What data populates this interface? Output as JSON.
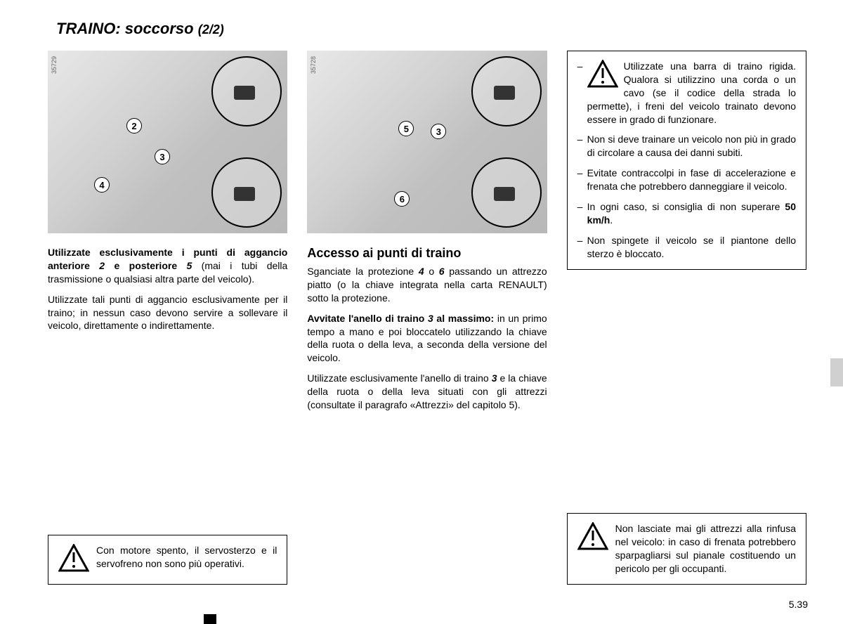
{
  "title_main": "TRAINO: soccorso",
  "title_sub": "(2/2)",
  "figure1": {
    "code": "35729",
    "labels": {
      "n2": "2",
      "n3": "3",
      "n4": "4"
    }
  },
  "figure2": {
    "code": "35728",
    "labels": {
      "n5": "5",
      "n3": "3",
      "n6": "6"
    }
  },
  "col1": {
    "p1_bold": "Utilizzate esclusivamente i punti di aggancio anteriore ",
    "p1_b_num1": "2",
    "p1_mid": " e posteriore ",
    "p1_b_num2": "5",
    "p1_rest": " (mai i tubi della trasmissione o qualsiasi altra parte del veicolo).",
    "p2": "Utilizzate tali punti di aggancio esclusivamente per il traino; in nessun caso devono servire a sollevare il veicolo, direttamente o indirettamente.",
    "warn": "Con motore spento, il servosterzo e il servofreno non sono più operativi."
  },
  "col2": {
    "heading": "Accesso ai punti di traino",
    "p1a": "Sganciate la protezione ",
    "p1n4": "4",
    "p1o": " o ",
    "p1n6": "6",
    "p1b": " passando un attrezzo piatto (o la chiave integrata nella carta RENAULT) sotto la protezione.",
    "p2_bold": "Avvitate l'anello di traino ",
    "p2_num": "3",
    "p2_bold2": " al massimo:",
    "p2_rest": " in un primo tempo a mano e poi bloccatelo utilizzando la chiave della ruota o della leva, a seconda della versione del veicolo.",
    "p3a": "Utilizzate esclusivamente l'anello di traino ",
    "p3n": "3",
    "p3b": " e la chiave della ruota o della leva situati con gli attrezzi (consultate il paragrafo «Attrezzi» del capitolo 5)."
  },
  "col3": {
    "warn1_first": "Utilizzate una barra di traino rigida. Qualora si utilizzino una corda o un cavo (se il codice della strada lo permette), i freni del veicolo trainato devono essere in grado di funzionare.",
    "warn1_items": [
      "Non si deve trainare un veicolo non più in grado di circolare a causa dei danni subiti.",
      "Evitate contraccolpi in fase di accelerazione e frenata che potrebbero danneggiare il veicolo.",
      "In ogni caso, si consiglia di non superare <b>50 km/h</b>.",
      "Non spingete il veicolo se il piantone dello sterzo è bloccato."
    ],
    "warn2": "Non lasciate mai gli attrezzi alla rinfusa nel veicolo: in caso di frenata potrebbero sparpagliarsi sul pianale costituendo un pericolo per gli occupanti."
  },
  "page_number": "5.39"
}
